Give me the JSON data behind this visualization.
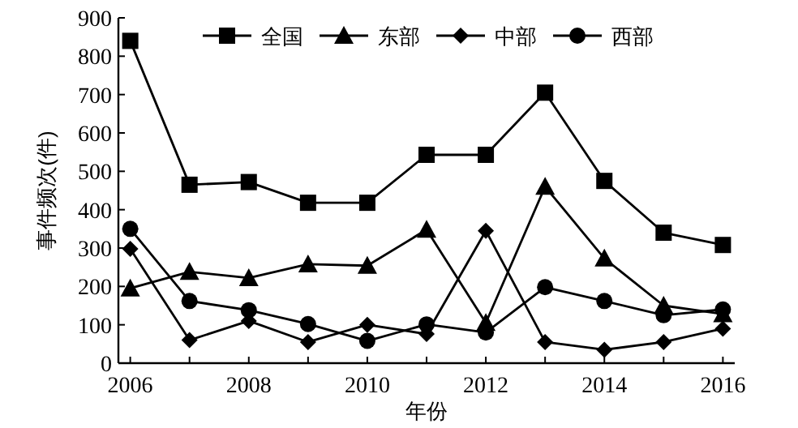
{
  "chart_data": {
    "type": "line",
    "xlabel": "年份",
    "ylabel": "事件频次(件)",
    "x": [
      2006,
      2007,
      2008,
      2009,
      2010,
      2011,
      2012,
      2013,
      2014,
      2015,
      2016
    ],
    "xlim": [
      2005.8,
      2016.2
    ],
    "xticks": [
      2006,
      2008,
      2010,
      2012,
      2014,
      2016
    ],
    "ylim": [
      0,
      900
    ],
    "yticks": [
      0,
      100,
      200,
      300,
      400,
      500,
      600,
      700,
      800,
      900
    ],
    "legend": "top",
    "grid": false,
    "line_style": "solid",
    "series": [
      {
        "name": "全国",
        "color": "#000000",
        "marker": "square",
        "values": [
          840,
          465,
          472,
          418,
          418,
          543,
          543,
          705,
          475,
          340,
          308
        ]
      },
      {
        "name": "东部",
        "color": "#000000",
        "marker": "triangle",
        "values": [
          195,
          238,
          222,
          258,
          254,
          348,
          105,
          460,
          273,
          150,
          128
        ]
      },
      {
        "name": "中部",
        "color": "#000000",
        "marker": "diamond",
        "values": [
          298,
          60,
          110,
          55,
          100,
          76,
          345,
          55,
          35,
          55,
          90
        ]
      },
      {
        "name": "西部",
        "color": "#000000",
        "marker": "circle",
        "values": [
          350,
          162,
          138,
          102,
          58,
          101,
          80,
          198,
          162,
          125,
          140
        ]
      }
    ]
  }
}
